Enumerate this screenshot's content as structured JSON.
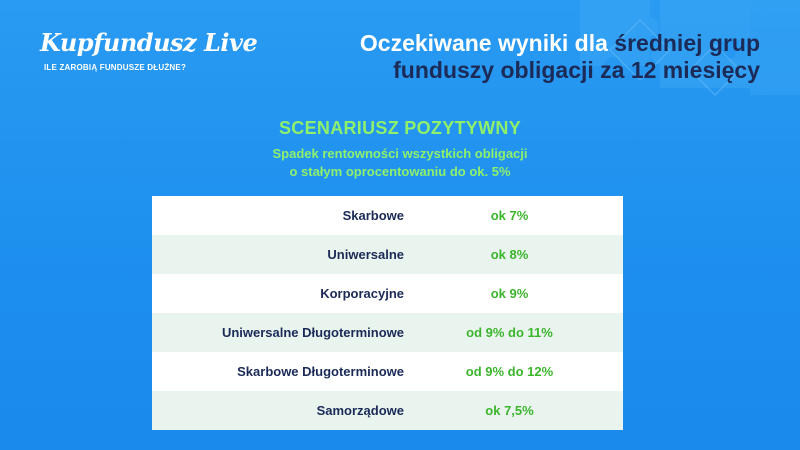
{
  "brand": {
    "logo_text": "Kupfundusz Live",
    "tagline": "ILE ZAROBIĄ FUNDUSZE DŁUŻNE?"
  },
  "headline": {
    "line1_white": "Oczekiwane wyniki dla",
    "line1_dark": "średniej grup",
    "line2_dark": "funduszy obligacji za 12 miesięcy"
  },
  "scenario": {
    "title": "SCENARIUSZ POZYTYWNY",
    "subtitle_line1": "Spadek rentowności wszystkich obligacji",
    "subtitle_line2": "o stałym oprocentowaniu do ok. 5%"
  },
  "table": {
    "rows": [
      {
        "name": "Skarbowe",
        "value": "ok 7%"
      },
      {
        "name": "Uniwersalne",
        "value": "ok 8%"
      },
      {
        "name": "Korporacyjne",
        "value": "ok 9%"
      },
      {
        "name": "Uniwersalne Długoterminowe",
        "value": "od 9% do 11%"
      },
      {
        "name": "Skarbowe Długoterminowe",
        "value": "od 9% do 12%"
      },
      {
        "name": "Samorządowe",
        "value": "ok 7,5%"
      }
    ]
  },
  "colors": {
    "background": "#1d8fee",
    "accent_green": "#8ff06b",
    "value_green": "#3bb52c",
    "dark_navy": "#1b2a57"
  }
}
